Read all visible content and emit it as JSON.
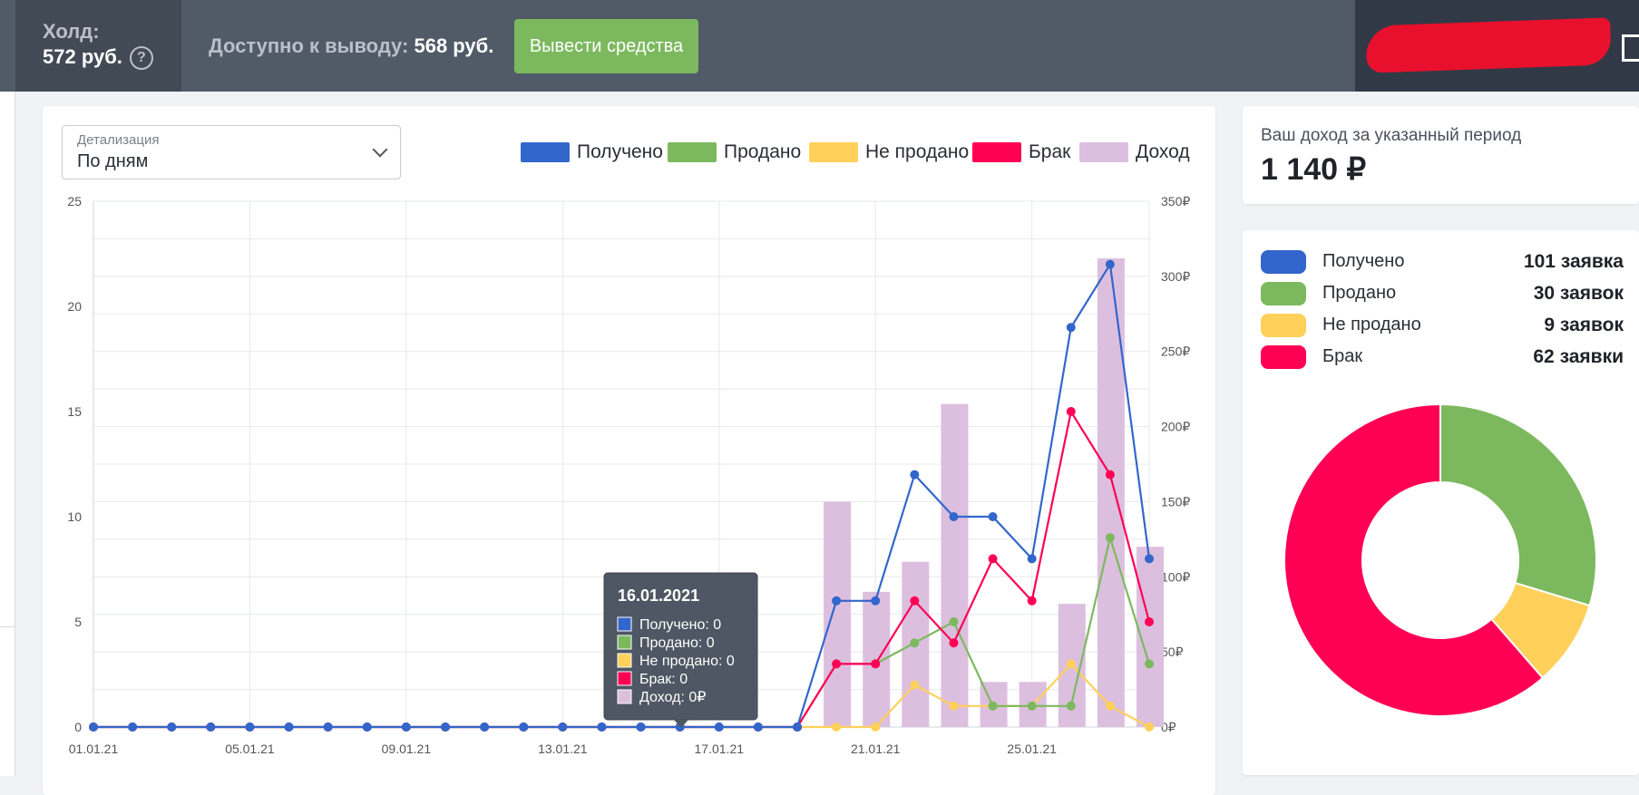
{
  "topbar": {
    "hold_label": "Холд:",
    "hold_value": "572 руб.",
    "help_icon": "?",
    "available_label": "Доступно к выводу:",
    "available_value": "568 руб.",
    "withdraw_button": "Вывести средства"
  },
  "filter": {
    "label": "Детализация",
    "value": "По дням"
  },
  "legend": [
    {
      "name": "Получено",
      "color": "#3366cc"
    },
    {
      "name": "Продано",
      "color": "#7cb95e"
    },
    {
      "name": "Не продано",
      "color": "#ffd05a"
    },
    {
      "name": "Брак",
      "color": "#ff0055"
    },
    {
      "name": "Доход",
      "color": "#dcbfdf"
    }
  ],
  "income": {
    "title": "Ваш доход за указанный период",
    "value": "1 140 ₽"
  },
  "stats": [
    {
      "name": "Получено",
      "count": "101 заявка",
      "color": "#3366cc"
    },
    {
      "name": "Продано",
      "count": "30 заявок",
      "color": "#7cb95e"
    },
    {
      "name": "Не продано",
      "count": "9 заявок",
      "color": "#ffd05a"
    },
    {
      "name": "Брак",
      "count": "62 заявки",
      "color": "#ff0055"
    }
  ],
  "tooltip": {
    "date": "16.01.2021",
    "lines": [
      "Получено: 0",
      "Продано: 0",
      "Не продано: 0",
      "Брак: 0",
      "Доход: 0₽"
    ]
  },
  "chart_data": [
    {
      "type": "line",
      "title": "",
      "x": [
        "01.01.21",
        "02.01.21",
        "03.01.21",
        "04.01.21",
        "05.01.21",
        "06.01.21",
        "07.01.21",
        "08.01.21",
        "09.01.21",
        "10.01.21",
        "11.01.21",
        "12.01.21",
        "13.01.21",
        "14.01.21",
        "15.01.21",
        "16.01.21",
        "17.01.21",
        "18.01.21",
        "19.01.21",
        "20.01.21",
        "21.01.21",
        "22.01.21",
        "23.01.21",
        "24.01.21",
        "25.01.21",
        "26.01.21",
        "27.01.21",
        "28.01.21"
      ],
      "xticks": [
        "01.01.21",
        "05.01.21",
        "09.01.21",
        "13.01.21",
        "17.01.21",
        "21.01.21",
        "25.01.21"
      ],
      "ylim": [
        0,
        25
      ],
      "yticks": [
        0,
        5,
        10,
        15,
        20,
        25
      ],
      "y2lim": [
        0,
        350
      ],
      "y2ticks": [
        "0₽",
        "50₽",
        "100₽",
        "150₽",
        "200₽",
        "250₽",
        "300₽",
        "350₽"
      ],
      "series": [
        {
          "name": "Получено",
          "axis": "left",
          "values": [
            0,
            0,
            0,
            0,
            0,
            0,
            0,
            0,
            0,
            0,
            0,
            0,
            0,
            0,
            0,
            0,
            0,
            0,
            0,
            6,
            6,
            12,
            10,
            10,
            8,
            19,
            22,
            8
          ]
        },
        {
          "name": "Продано",
          "axis": "left",
          "values": [
            0,
            0,
            0,
            0,
            0,
            0,
            0,
            0,
            0,
            0,
            0,
            0,
            0,
            0,
            0,
            0,
            0,
            0,
            0,
            3,
            3,
            4,
            5,
            1,
            1,
            1,
            9,
            3
          ]
        },
        {
          "name": "Не продано",
          "axis": "left",
          "values": [
            0,
            0,
            0,
            0,
            0,
            0,
            0,
            0,
            0,
            0,
            0,
            0,
            0,
            0,
            0,
            0,
            0,
            0,
            0,
            0,
            0,
            2,
            1,
            1,
            1,
            3,
            1,
            0
          ]
        },
        {
          "name": "Брак",
          "axis": "left",
          "values": [
            0,
            0,
            0,
            0,
            0,
            0,
            0,
            0,
            0,
            0,
            0,
            0,
            0,
            0,
            0,
            0,
            0,
            0,
            0,
            3,
            3,
            6,
            4,
            8,
            6,
            15,
            12,
            5
          ]
        },
        {
          "name": "Доход",
          "axis": "right",
          "kind": "bar",
          "values": [
            0,
            0,
            0,
            0,
            0,
            0,
            0,
            0,
            0,
            0,
            0,
            0,
            0,
            0,
            0,
            0,
            0,
            0,
            0,
            150,
            90,
            110,
            215,
            30,
            30,
            82,
            312,
            120
          ]
        }
      ]
    },
    {
      "type": "pie",
      "title": "",
      "labels": [
        "Продано",
        "Не продано",
        "Брак"
      ],
      "values": [
        30,
        9,
        62
      ]
    }
  ]
}
